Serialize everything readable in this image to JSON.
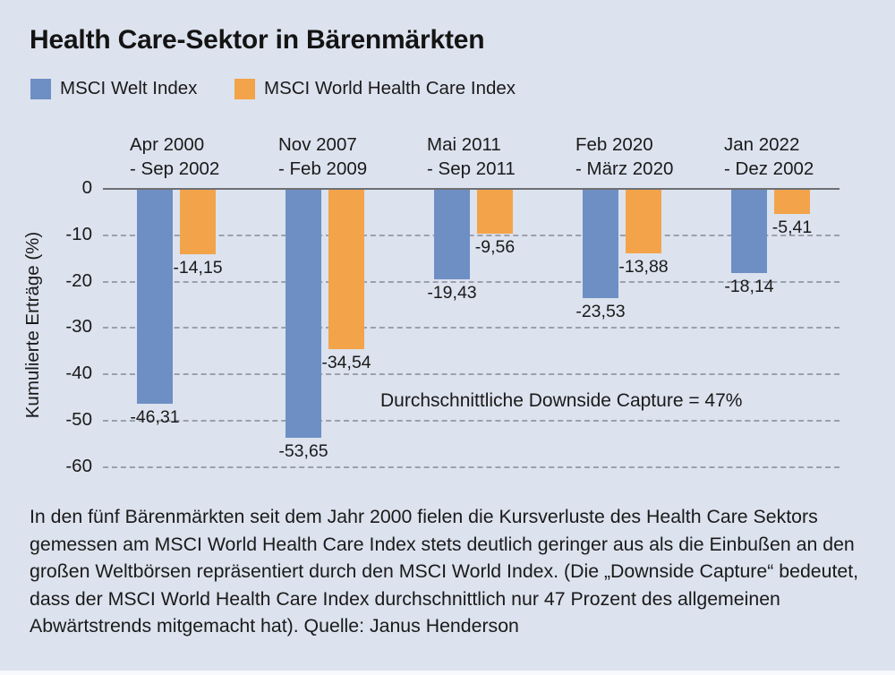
{
  "page": {
    "background": "#dce2ee",
    "title": "Health Care-Sektor in Bärenmärkten"
  },
  "legend": {
    "items": [
      {
        "label": "MSCI Welt Index",
        "color": "#6d8fc4"
      },
      {
        "label": "MSCI World Health Care Index",
        "color": "#f3a34a"
      }
    ]
  },
  "chart_data": {
    "type": "bar",
    "categories": [
      {
        "line1": "Apr 2000",
        "line2": "- Sep 2002"
      },
      {
        "line1": "Nov 2007",
        "line2": "- Feb 2009"
      },
      {
        "line1": "Mai 2011",
        "line2": "- Sep 2011"
      },
      {
        "line1": "Feb 2020",
        "line2": "- März 2020"
      },
      {
        "line1": "Jan 2022",
        "line2": "- Dez 2002"
      }
    ],
    "series": [
      {
        "name": "MSCI Welt Index",
        "color": "#6d8fc4",
        "values": [
          -46.31,
          -53.65,
          -19.43,
          -23.53,
          -18.14
        ],
        "labels": [
          "-46,31",
          "-53,65",
          "-19,43",
          "-23,53",
          "-18,14"
        ]
      },
      {
        "name": "MSCI World Health Care Index",
        "color": "#f3a34a",
        "values": [
          -14.15,
          -34.54,
          -9.56,
          -13.88,
          -5.41
        ],
        "labels": [
          "-14,15",
          "-34,54",
          "-9,56",
          "-13,88",
          "-5,41"
        ]
      }
    ],
    "ylabel": "Kumulierte Erträge (%)",
    "yticks": [
      {
        "value": 0,
        "label": "0"
      },
      {
        "value": -10,
        "label": "-10"
      },
      {
        "value": -20,
        "label": "-20"
      },
      {
        "value": -30,
        "label": "-30"
      },
      {
        "value": -40,
        "label": "-40"
      },
      {
        "value": -50,
        "label": "-50"
      },
      {
        "value": -60,
        "label": "-60"
      }
    ],
    "ylim": [
      -60,
      0
    ],
    "grid": "horizontal-dashed",
    "legend_position": "top-left",
    "annotation": "Durchschnittliche Downside Capture = 47%"
  },
  "footer": {
    "text": "In den fünf Bärenmärkten seit dem Jahr 2000 fielen die Kursverluste des Health Care Sektors gemessen am MSCI World Health Care Index stets deutlich geringer aus als die Einbußen an den großen Weltbörsen repräsentiert durch den MSCI World Index. (Die „Downside Capture“ bedeutet, dass der MSCI World Health Care Index durchschnittlich nur 47 Prozent des allgemeinen Abwärtstrends mitgemacht hat). Quelle: Janus Henderson"
  }
}
